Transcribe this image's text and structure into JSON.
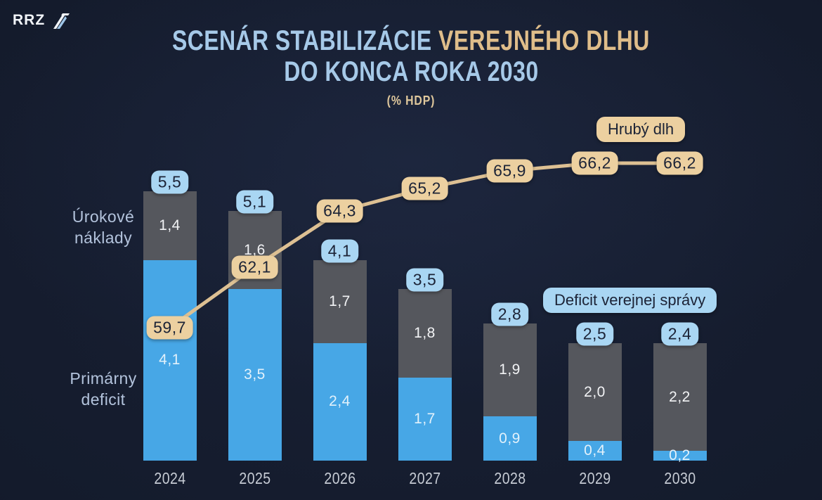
{
  "logo": {
    "text": "RRZ"
  },
  "title": {
    "line1_blue": "SCENÁR STABILIZÁCIE",
    "line1_tan": " VEREJNÉHO DLHU",
    "line2": "DO KONCA ROKA 2030",
    "subtitle": "(% HDP)"
  },
  "legend": {
    "gross_debt_label": "Hrubý dlh",
    "deficit_label": "Deficit verejnej správy"
  },
  "axis_notes": {
    "interest_line1": "Úrokové",
    "interest_line2": "náklady",
    "primary_line1": "Primárny",
    "primary_line2": "deficit"
  },
  "colors": {
    "background": "#141b2c",
    "bar_blue": "#47a7e6",
    "bar_gray": "#55575d",
    "badge_tan": "#ecd0a0",
    "badge_blue": "#a9d6f3",
    "line_tan": "#ddc093",
    "title_blue": "#a6c9e8",
    "title_tan": "#dfbd8a",
    "badge_text": "#1c2336"
  },
  "chart_data": {
    "type": "bar",
    "subtype": "stacked-bars-with-line",
    "title": "Scenár stabilizácie verejného dlhu do konca roka 2030",
    "unit": "% HDP",
    "categories": [
      "2024",
      "2025",
      "2026",
      "2027",
      "2028",
      "2029",
      "2030"
    ],
    "series": [
      {
        "name": "Primárny deficit",
        "type": "bar",
        "stack": "deficit",
        "values": [
          4.1,
          3.5,
          2.4,
          1.7,
          0.9,
          0.4,
          0.2
        ],
        "labels": [
          "4,1",
          "3,5",
          "2,4",
          "1,7",
          "0,9",
          "0,4",
          "0,2"
        ]
      },
      {
        "name": "Úrokové náklady",
        "type": "bar",
        "stack": "deficit",
        "values": [
          1.4,
          1.6,
          1.7,
          1.8,
          1.9,
          2.0,
          2.2
        ],
        "labels": [
          "1,4",
          "1,6",
          "1,7",
          "1,8",
          "1,9",
          "2,0",
          "2,2"
        ]
      },
      {
        "name": "Deficit verejnej správy",
        "type": "stack-total-badge",
        "values": [
          5.5,
          5.1,
          4.1,
          3.5,
          2.8,
          2.5,
          2.4
        ],
        "labels": [
          "5,5",
          "5,1",
          "4,1",
          "3,5",
          "2,8",
          "2,5",
          "2,4"
        ]
      },
      {
        "name": "Hrubý dlh",
        "type": "line",
        "values": [
          59.7,
          62.1,
          64.3,
          65.2,
          65.9,
          66.2,
          66.2
        ],
        "labels": [
          "59,7",
          "62,1",
          "64,3",
          "65,2",
          "65,9",
          "66,2",
          "66,2"
        ]
      }
    ],
    "ylim_bars": [
      0,
      6
    ],
    "ylim_line": [
      58,
      68
    ],
    "grid": false,
    "legend_position": "floating badges inside plot"
  }
}
